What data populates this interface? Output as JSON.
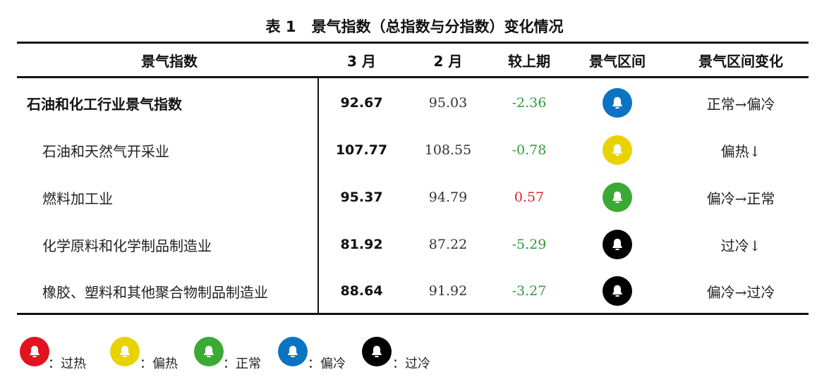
{
  "table": {
    "caption_number": "表 1",
    "caption_title": "景气指数（总指数与分指数）变化情况",
    "headers": [
      "景气指数",
      "3 月",
      "2 月",
      "较上期",
      "景气区间",
      "景气区间变化"
    ],
    "rows": [
      {
        "name": "石油和化工行业景气指数",
        "march": "92.67",
        "feb": "95.03",
        "diff": "-2.36",
        "zone": "偏冷",
        "zone_color": "#0b74c2",
        "change": "正常→偏冷"
      },
      {
        "name": "石油和天然气开采业",
        "march": "107.77",
        "feb": "108.55",
        "diff": "-0.78",
        "zone": "偏热",
        "zone_color": "#e8d300",
        "change": "偏热↓"
      },
      {
        "name": "燃料加工业",
        "march": "95.37",
        "feb": "94.79",
        "diff": "0.57",
        "zone": "正常",
        "zone_color": "#3aaa35",
        "change": "偏冷→正常"
      },
      {
        "name": "化学原料和化学制品制造业",
        "march": "81.92",
        "feb": "87.22",
        "diff": "-5.29",
        "zone": "过冷",
        "zone_color": "#000000",
        "change": "过冷↓"
      },
      {
        "name": "橡胶、塑料和其他聚合物制品制造业",
        "march": "88.64",
        "feb": "91.92",
        "diff": "-3.27",
        "zone": "过冷",
        "zone_color": "#000000",
        "change": "偏冷→过冷"
      }
    ]
  },
  "legend": [
    {
      "label": "：过热",
      "color": "#e3121f"
    },
    {
      "label": "：偏热",
      "color": "#e8d300"
    },
    {
      "label": "：正常",
      "color": "#3aaa35"
    },
    {
      "label": "：偏冷",
      "color": "#0b74c2"
    },
    {
      "label": "：过冷",
      "color": "#000000"
    }
  ],
  "icons": {
    "bell": "bell-icon"
  }
}
